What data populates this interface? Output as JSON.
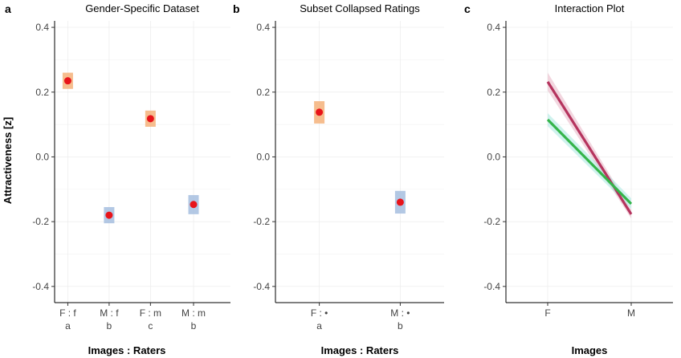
{
  "figure": {
    "ylabel": "Attractiveness [z]",
    "panels": [
      {
        "letter": "a",
        "title": "Gender-Specific Dataset",
        "xlabel": "Images : Raters"
      },
      {
        "letter": "b",
        "title": "Subset Collapsed Ratings",
        "xlabel": "Images : Raters"
      },
      {
        "letter": "c",
        "title": "Interaction Plot",
        "xlabel": "Images"
      }
    ]
  },
  "colors": {
    "point": "#e8141a",
    "band_orange": "#f4b27a",
    "band_blue": "#a6bedf",
    "line_red": "#b5345e",
    "line_green": "#34b44a",
    "ribbon_red": "#e8b4c4",
    "ribbon_green": "#a8e8e0"
  },
  "chart_data": [
    {
      "type": "scatter",
      "title": "Gender-Specific Dataset",
      "xlabel": "Images : Raters",
      "ylabel": "Attractiveness [z]",
      "ylim": [
        -0.45,
        0.42
      ],
      "yticks": [
        -0.4,
        -0.2,
        0.0,
        0.2,
        0.4
      ],
      "yticklabels": [
        "-0.4",
        "-0.2",
        "0.0",
        "0.2",
        "0.4"
      ],
      "grid": true,
      "categories": [
        "F : f",
        "M : f",
        "F : m",
        "M : m"
      ],
      "group_letters": [
        "a",
        "b",
        "c",
        "b"
      ],
      "values": [
        0.235,
        -0.18,
        0.118,
        -0.147
      ],
      "interval_low": [
        0.21,
        -0.205,
        0.093,
        -0.177
      ],
      "interval_high": [
        0.26,
        -0.155,
        0.143,
        -0.118
      ],
      "interval_color": [
        "orange",
        "blue",
        "orange",
        "blue"
      ]
    },
    {
      "type": "scatter",
      "title": "Subset Collapsed Ratings",
      "xlabel": "Images : Raters",
      "ylabel": "Attractiveness [z]",
      "ylim": [
        -0.45,
        0.42
      ],
      "yticks": [
        -0.4,
        -0.2,
        0.0,
        0.2,
        0.4
      ],
      "yticklabels": [
        "-0.4",
        "-0.2",
        "0.0",
        "0.2",
        "0.4"
      ],
      "grid": true,
      "categories": [
        "F : •",
        "M : •"
      ],
      "group_letters": [
        "a",
        "b"
      ],
      "values": [
        0.138,
        -0.14
      ],
      "interval_low": [
        0.103,
        -0.175
      ],
      "interval_high": [
        0.172,
        -0.105
      ],
      "interval_color": [
        "orange",
        "blue"
      ]
    },
    {
      "type": "line",
      "title": "Interaction Plot",
      "xlabel": "Images",
      "ylabel": "Attractiveness [z]",
      "ylim": [
        -0.45,
        0.42
      ],
      "yticks": [
        -0.4,
        -0.2,
        0.0,
        0.2,
        0.4
      ],
      "yticklabels": [
        "-0.4",
        "-0.2",
        "0.0",
        "0.2",
        "0.4"
      ],
      "grid": true,
      "categories": [
        "F",
        "M"
      ],
      "series": [
        {
          "color": "red",
          "values": [
            0.232,
            -0.177
          ],
          "ribbon_low": [
            0.205,
            -0.19
          ],
          "ribbon_high": [
            0.26,
            -0.163
          ]
        },
        {
          "color": "green",
          "values": [
            0.115,
            -0.145
          ],
          "ribbon_low": [
            0.095,
            -0.16
          ],
          "ribbon_high": [
            0.135,
            -0.128
          ]
        }
      ]
    }
  ]
}
